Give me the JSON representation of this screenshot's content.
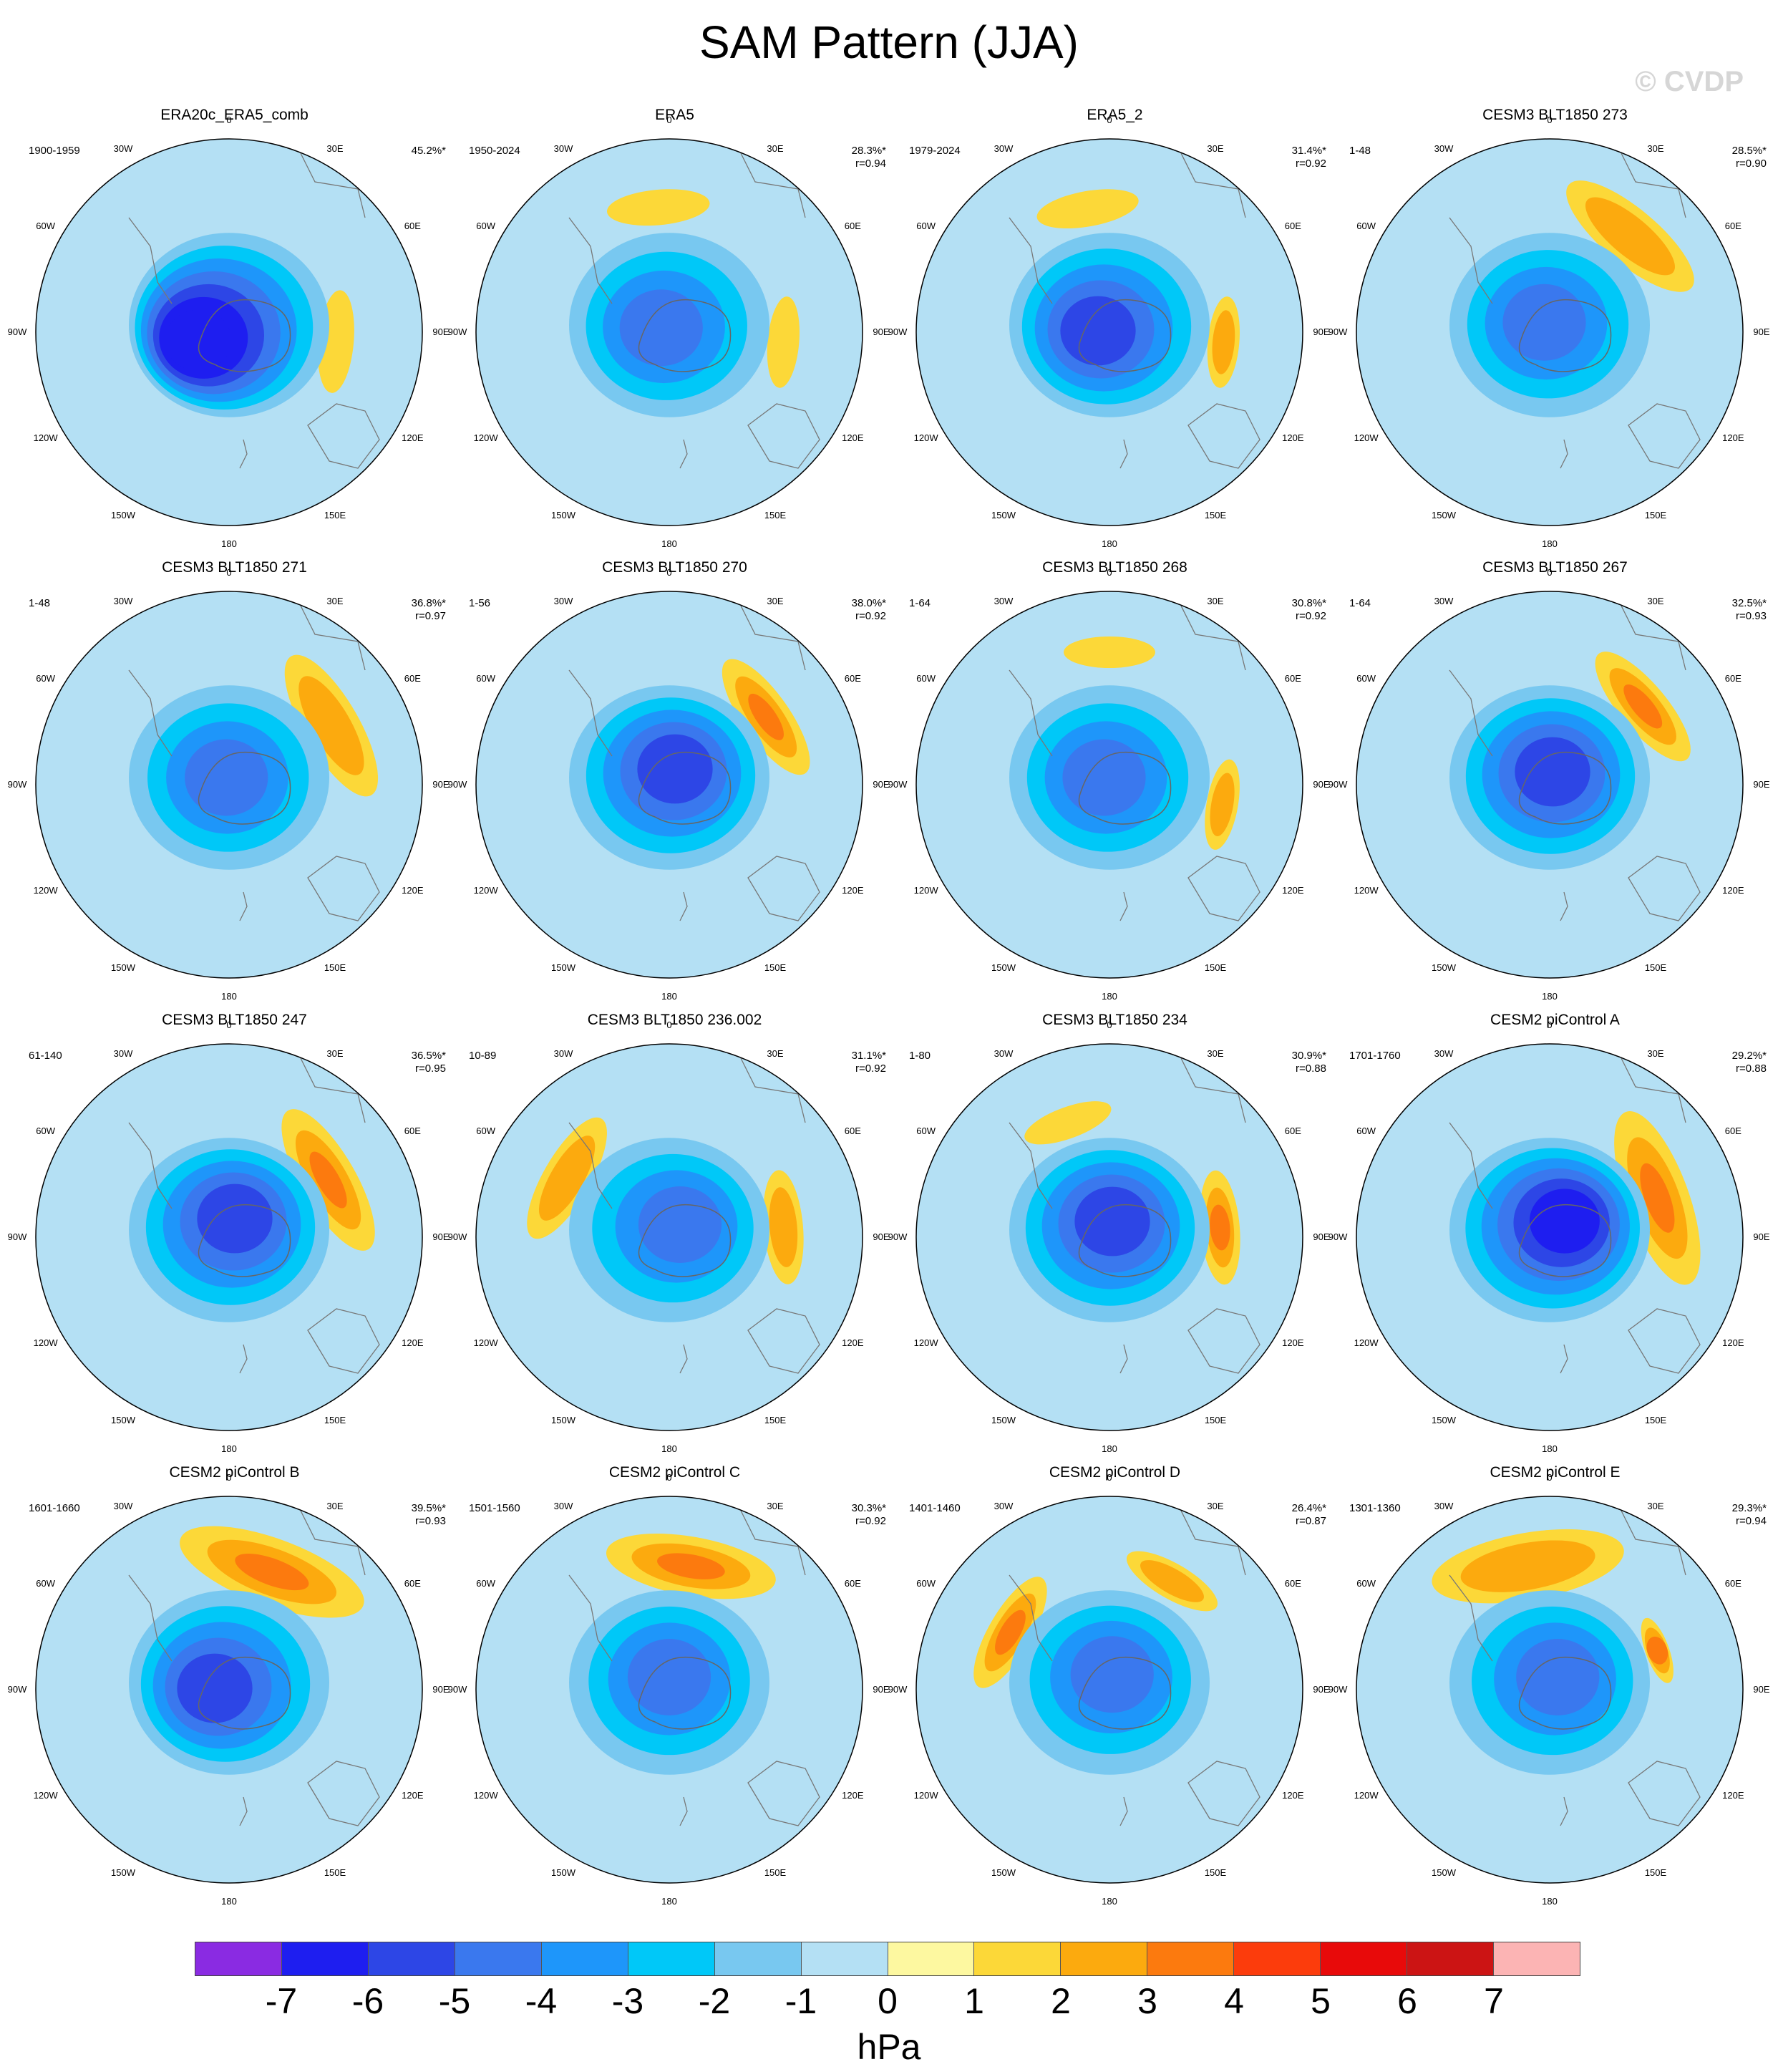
{
  "title": "SAM Pattern (JJA)",
  "watermark": "© CVDP",
  "units": "hPa",
  "longitude_labels": [
    "0",
    "30E",
    "60E",
    "90E",
    "120E",
    "150E",
    "180",
    "150W",
    "120W",
    "90W",
    "60W",
    "30W"
  ],
  "colorbar": {
    "colors": [
      "#8a2be2",
      "#1e1ef0",
      "#2d46e6",
      "#3a78ee",
      "#1e96fa",
      "#00c8f8",
      "#78c8f0",
      "#b4e0f4",
      "#fdf8a0",
      "#fcd838",
      "#fcaa0e",
      "#fc7a0e",
      "#fc3c0c",
      "#e80a0a",
      "#cc1414",
      "#fcb4b4"
    ],
    "ticks": [
      "-7",
      "-6",
      "-5",
      "-4",
      "-3",
      "-2",
      "-1",
      "0",
      "1",
      "2",
      "3",
      "4",
      "5",
      "6",
      "7"
    ]
  },
  "panels": [
    {
      "title": "ERA20c_ERA5_comb",
      "period": "1900-1959",
      "pct": "45.2%*",
      "r": ""
    },
    {
      "title": "ERA5",
      "period": "1950-2024",
      "pct": "28.3%*",
      "r": "r=0.94"
    },
    {
      "title": "ERA5_2",
      "period": "1979-2024",
      "pct": "31.4%*",
      "r": "r=0.92"
    },
    {
      "title": "CESM3 BLT1850 273",
      "period": "1-48",
      "pct": "28.5%*",
      "r": "r=0.90"
    },
    {
      "title": "CESM3 BLT1850 271",
      "period": "1-48",
      "pct": "36.8%*",
      "r": "r=0.97"
    },
    {
      "title": "CESM3 BLT1850 270",
      "period": "1-56",
      "pct": "38.0%*",
      "r": "r=0.92"
    },
    {
      "title": "CESM3 BLT1850 268",
      "period": "1-64",
      "pct": "30.8%*",
      "r": "r=0.92"
    },
    {
      "title": "CESM3 BLT1850 267",
      "period": "1-64",
      "pct": "32.5%*",
      "r": "r=0.93"
    },
    {
      "title": "CESM3 BLT1850 247",
      "period": "61-140",
      "pct": "36.5%*",
      "r": "r=0.95"
    },
    {
      "title": "CESM3 BLT1850 236.002",
      "period": "10-89",
      "pct": "31.1%*",
      "r": "r=0.92"
    },
    {
      "title": "CESM3 BLT1850 234",
      "period": "1-80",
      "pct": "30.9%*",
      "r": "r=0.88"
    },
    {
      "title": "CESM2 piControl A",
      "period": "1701-1760",
      "pct": "29.2%*",
      "r": "r=0.88"
    },
    {
      "title": "CESM2 piControl B",
      "period": "1601-1660",
      "pct": "39.5%*",
      "r": "r=0.93"
    },
    {
      "title": "CESM2 piControl C",
      "period": "1501-1560",
      "pct": "30.3%*",
      "r": "r=0.92"
    },
    {
      "title": "CESM2 piControl D",
      "period": "1401-1460",
      "pct": "26.4%*",
      "r": "r=0.87"
    },
    {
      "title": "CESM2 piControl E",
      "period": "1301-1360",
      "pct": "29.3%*",
      "r": "r=0.94"
    }
  ]
}
